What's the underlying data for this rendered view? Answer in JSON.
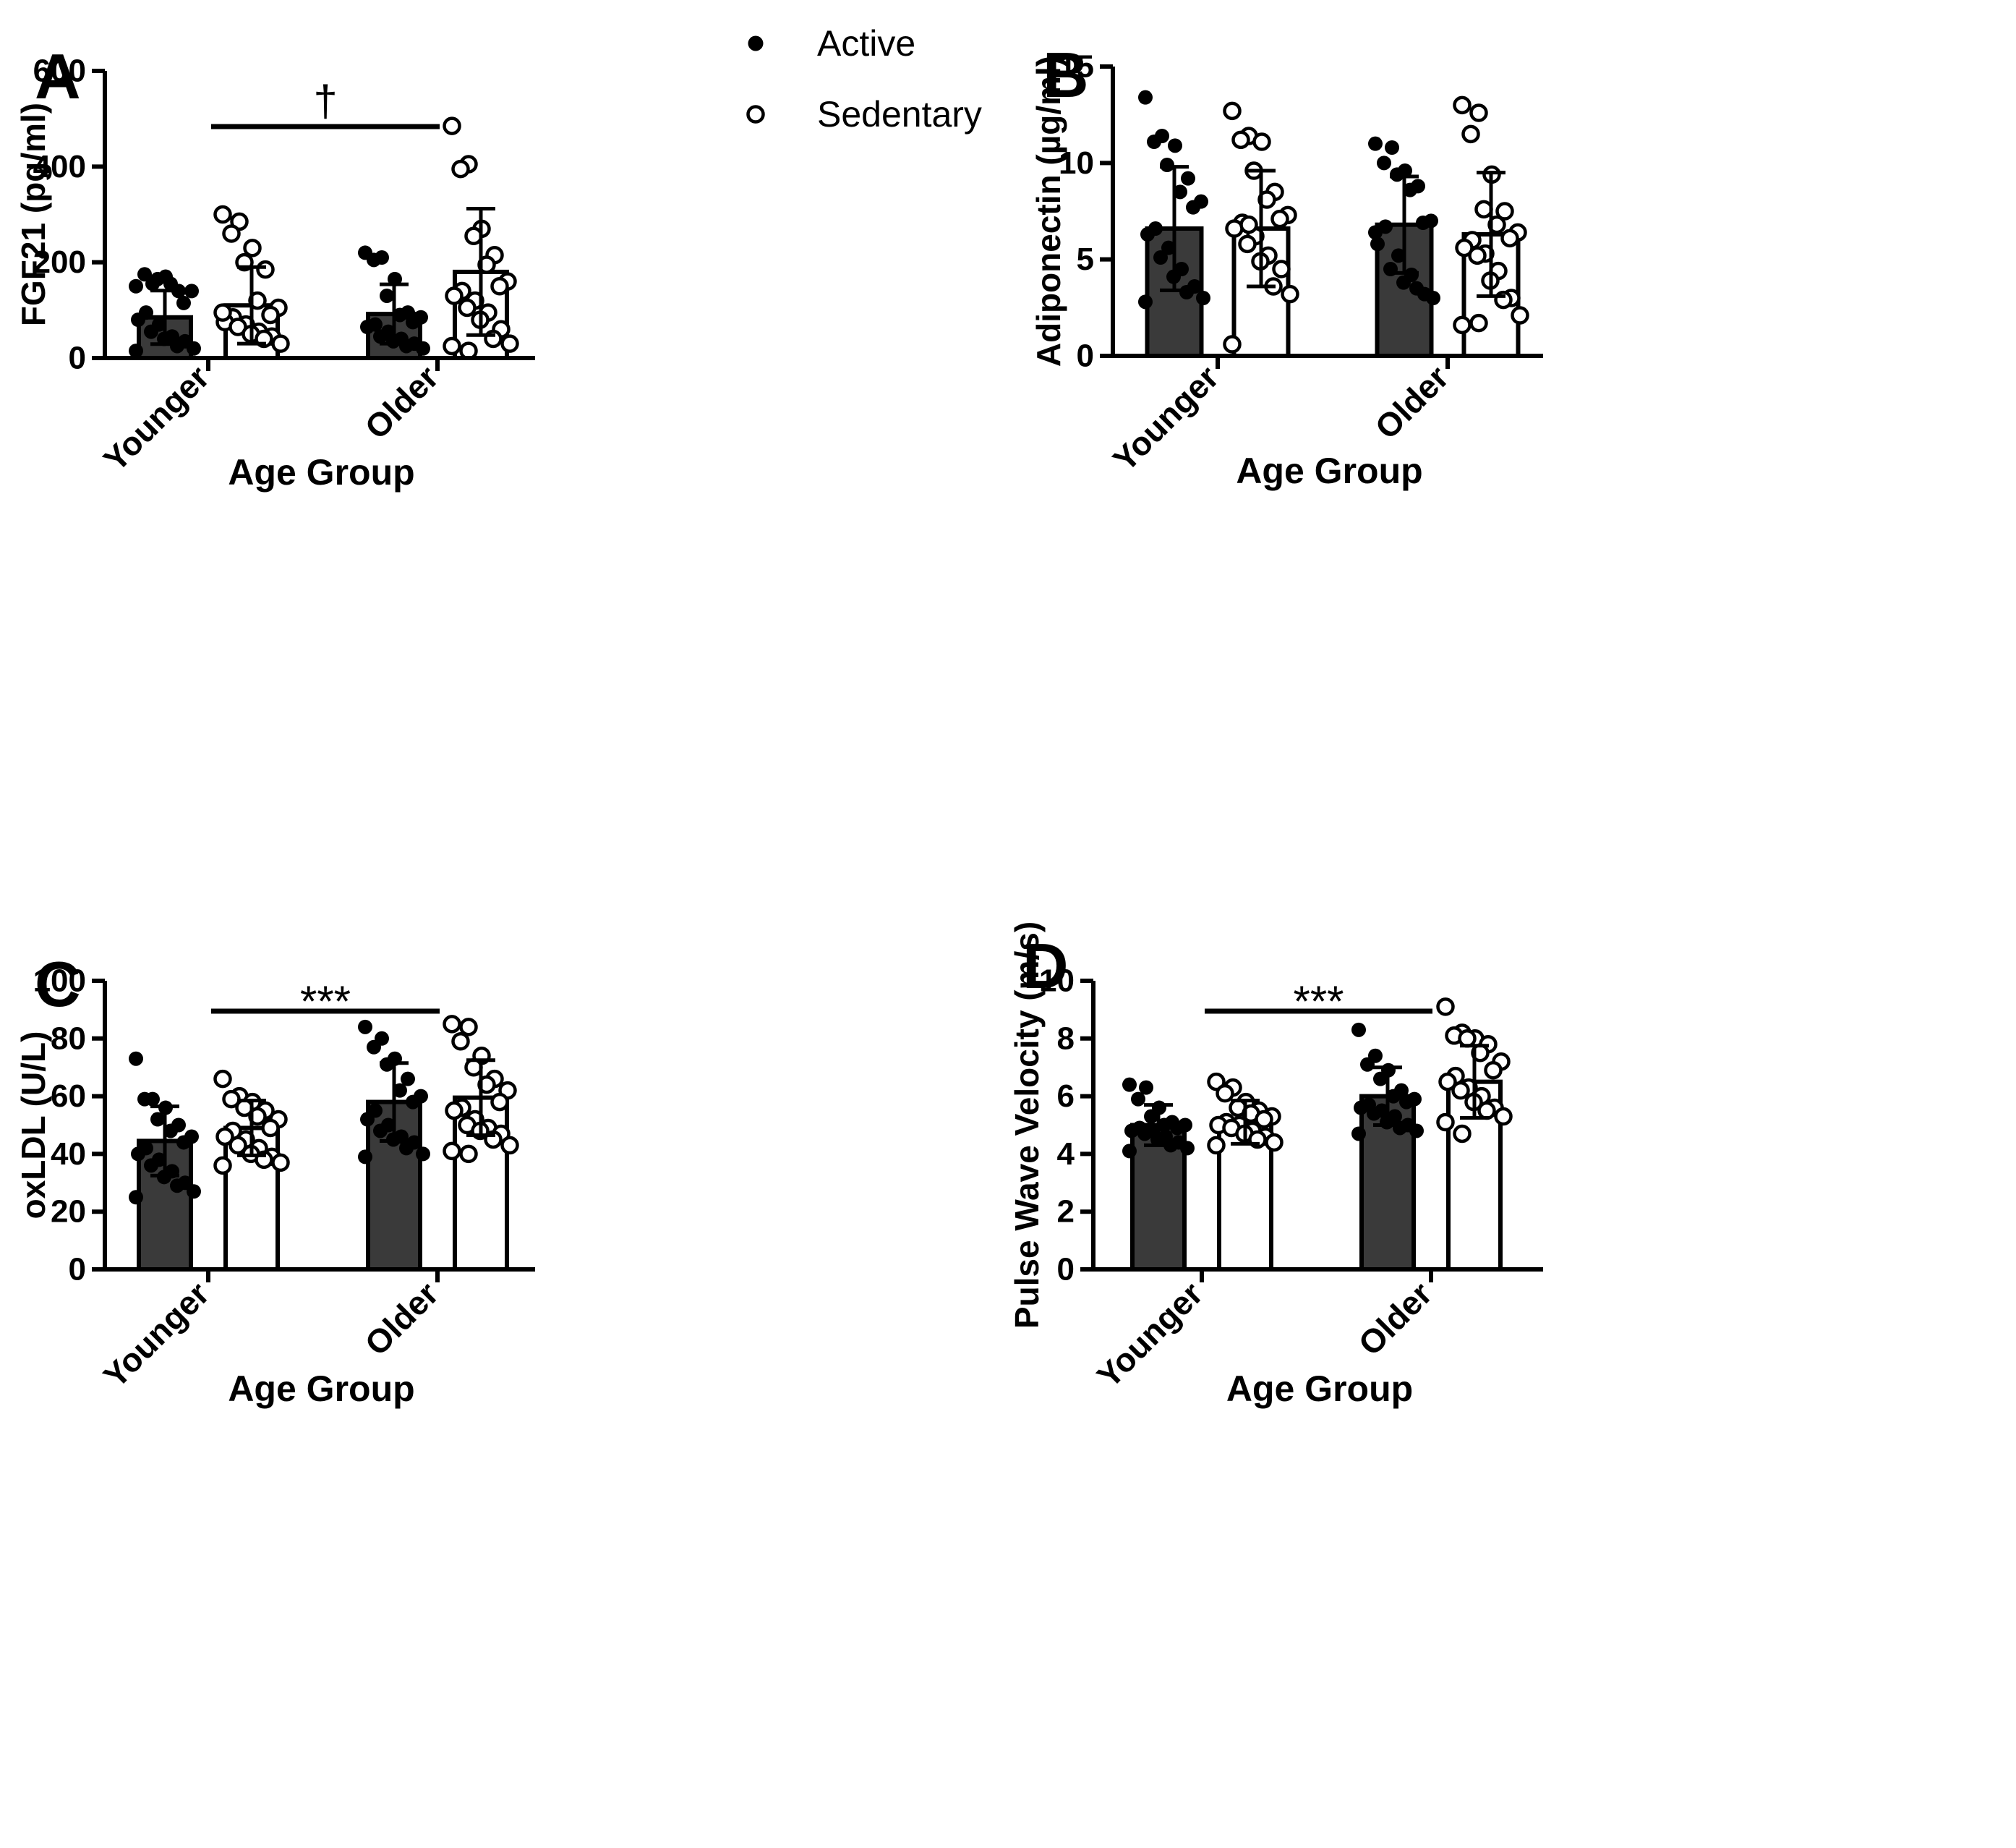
{
  "legend": [
    {
      "label": "Active",
      "marker": "filled",
      "color": "#3a3a3a"
    },
    {
      "label": "Sedentary",
      "marker": "open",
      "color": "#ffffff"
    }
  ],
  "colors": {
    "active_bar": "#3a3a3a",
    "sedentary_bar": "#ffffff",
    "axis": "#000000"
  },
  "chart_data": [
    {
      "panel": "A",
      "type": "bar",
      "title": "",
      "xlabel": "Age Group",
      "ylabel": "FGF21 (pg/ml)",
      "categories": [
        "Younger",
        "Older"
      ],
      "ylim": [
        0,
        600
      ],
      "yticks": [
        0,
        200,
        400,
        600
      ],
      "significance": {
        "label": "†",
        "between": [
          "Younger",
          "Older"
        ],
        "level": 480
      },
      "series": [
        {
          "name": "Active",
          "values": [
            85,
            92
          ],
          "sd": [
            56,
            62
          ],
          "points": [
            [
              150,
              155,
              175,
              170,
              165,
              140,
              155,
              140,
              115,
              95,
              80,
              70,
              55,
              45,
              40,
              35,
              25,
              20,
              15
            ],
            [
              220,
              210,
              205,
              165,
              130,
              95,
              90,
              85,
              75,
              70,
              65,
              55,
              45,
              40,
              35,
              30,
              25,
              20
            ]
          ]
        },
        {
          "name": "Sedentary",
          "values": [
            110,
            180
          ],
          "sd": [
            80,
            132
          ],
          "points": [
            [
              300,
              285,
              260,
              230,
              200,
              185,
              120,
              105,
              90,
              85,
              75,
              70,
              65,
              55,
              50,
              45,
              40,
              30,
              95
            ],
            [
              485,
              405,
              395,
              270,
              255,
              215,
              195,
              160,
              150,
              140,
              130,
              120,
              105,
              95,
              80,
              60,
              40,
              30,
              25,
              15
            ]
          ]
        }
      ]
    },
    {
      "panel": "B",
      "type": "bar",
      "title": "",
      "xlabel": "Age Group",
      "ylabel": "Adiponectin (µg/ml)",
      "categories": [
        "Younger",
        "Older"
      ],
      "ylim": [
        0,
        15
      ],
      "yticks": [
        0,
        5,
        10,
        15
      ],
      "significance": null,
      "series": [
        {
          "name": "Active",
          "values": [
            6.6,
            6.8
          ],
          "sd": [
            3.2,
            2.5
          ],
          "points": [
            [
              13.4,
              11.4,
              11.1,
              10.9,
              9.9,
              9.2,
              8.5,
              8.0,
              7.7,
              6.6,
              6.3,
              5.6,
              5.1,
              4.5,
              4.1,
              3.6,
              3.3,
              3.0,
              2.8
            ],
            [
              11.0,
              10.8,
              10.0,
              9.6,
              9.4,
              8.8,
              8.6,
              7.0,
              6.9,
              6.7,
              5.8,
              5.2,
              4.5,
              4.2,
              3.8,
              3.2,
              3.5,
              3.0,
              6.4
            ]
          ]
        },
        {
          "name": "Sedentary",
          "values": [
            6.6,
            6.3
          ],
          "sd": [
            3.0,
            3.2
          ],
          "points": [
            [
              12.7,
              11.4,
              11.2,
              11.1,
              9.6,
              8.5,
              8.1,
              7.3,
              7.1,
              6.9,
              6.6,
              6.2,
              5.8,
              5.2,
              4.9,
              4.5,
              3.6,
              3.2,
              0.6,
              6.8
            ],
            [
              13.0,
              12.6,
              11.5,
              9.4,
              7.6,
              7.5,
              6.8,
              6.4,
              6.1,
              6.0,
              5.6,
              5.3,
              5.2,
              4.4,
              3.9,
              3.0,
              2.9,
              2.1,
              1.6,
              1.7
            ]
          ]
        }
      ]
    },
    {
      "panel": "C",
      "type": "bar",
      "title": "",
      "xlabel": "Age Group",
      "ylabel": "oxLDL (U/L)",
      "categories": [
        "Younger",
        "Older"
      ],
      "ylim": [
        0,
        100
      ],
      "yticks": [
        0,
        20,
        40,
        60,
        80,
        100
      ],
      "significance": {
        "label": "***",
        "between": [
          "Younger",
          "Older"
        ],
        "level": 90
      },
      "series": [
        {
          "name": "Active",
          "values": [
            44.5,
            58
          ],
          "sd": [
            12,
            13.5
          ],
          "points": [
            [
              73,
              59,
              59,
              56,
              52,
              50,
              48,
              46,
              44,
              42,
              40,
              38,
              36,
              34,
              32,
              30,
              29,
              27,
              25
            ],
            [
              84,
              80,
              77,
              73,
              71,
              66,
              62,
              60,
              58,
              55,
              52,
              50,
              48,
              46,
              45,
              44,
              42,
              40,
              39
            ]
          ]
        },
        {
          "name": "Sedentary",
          "values": [
            49,
            59.5
          ],
          "sd": [
            9.5,
            13
          ],
          "points": [
            [
              66,
              60,
              59,
              58,
              56,
              55,
              53,
              52,
              49,
              48,
              46,
              45,
              43,
              42,
              40,
              39,
              38,
              37,
              36
            ],
            [
              85,
              84,
              79,
              74,
              70,
              66,
              64,
              62,
              58,
              56,
              55,
              52,
              50,
              49,
              48,
              47,
              45,
              43,
              41,
              40
            ]
          ]
        }
      ]
    },
    {
      "panel": "D",
      "type": "bar",
      "title": "",
      "xlabel": "Age Group",
      "ylabel": "Pulse Wave Velocity (m/s)",
      "categories": [
        "Younger",
        "Older"
      ],
      "ylim": [
        0,
        10
      ],
      "yticks": [
        0,
        2,
        4,
        6,
        8,
        10
      ],
      "significance": {
        "label": "***",
        "between": [
          "Younger",
          "Older"
        ],
        "level": 9.0
      },
      "series": [
        {
          "name": "Active",
          "values": [
            5.0,
            6.0
          ],
          "sd": [
            0.7,
            1.0
          ],
          "points": [
            [
              6.4,
              6.3,
              5.9,
              5.6,
              5.3,
              5.1,
              5.0,
              5.0,
              4.9,
              4.9,
              4.8,
              4.8,
              4.7,
              4.6,
              4.5,
              4.4,
              4.3,
              4.2,
              4.1
            ],
            [
              8.3,
              7.4,
              7.1,
              6.9,
              6.6,
              6.2,
              6.0,
              5.9,
              5.8,
              5.7,
              5.6,
              5.5,
              5.4,
              5.3,
              5.1,
              5.0,
              4.9,
              4.8,
              4.7
            ]
          ]
        },
        {
          "name": "Sedentary",
          "values": [
            5.1,
            6.5
          ],
          "sd": [
            0.75,
            1.25
          ],
          "points": [
            [
              6.5,
              6.3,
              6.1,
              5.8,
              5.6,
              5.5,
              5.4,
              5.3,
              5.2,
              5.1,
              5.0,
              5.0,
              4.9,
              4.8,
              4.7,
              4.6,
              4.5,
              4.4,
              4.3
            ],
            [
              9.1,
              8.2,
              8.1,
              8.0,
              8.0,
              7.8,
              7.5,
              7.2,
              6.9,
              6.7,
              6.5,
              6.3,
              6.2,
              6.0,
              5.8,
              5.6,
              5.5,
              5.3,
              5.1,
              4.7
            ]
          ]
        }
      ]
    }
  ]
}
